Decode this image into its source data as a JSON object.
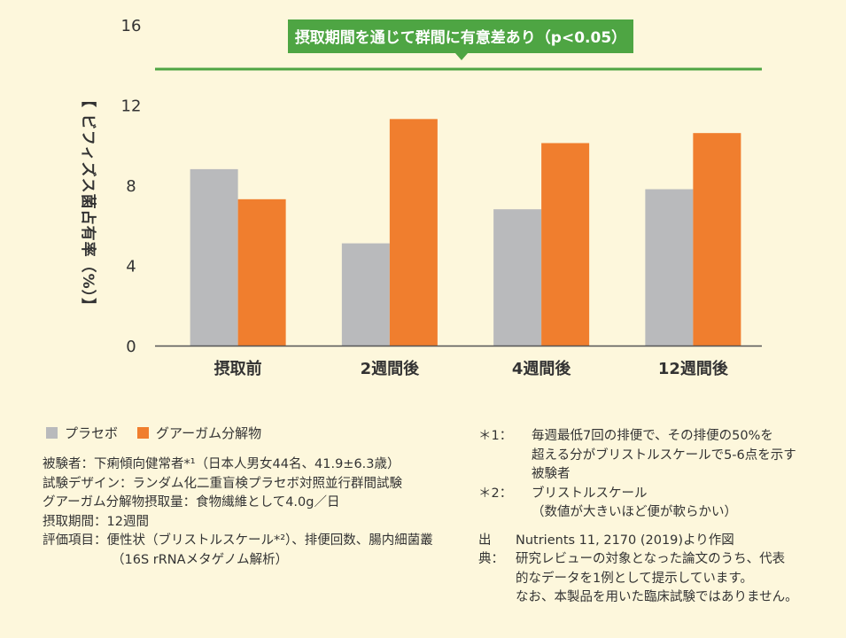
{
  "colors": {
    "placebo": "#b9babc",
    "pectin": "#f07e2e",
    "green": "#4ea543",
    "axis": "#555555",
    "background": "#fdf7dc"
  },
  "chart_data": {
    "type": "bar",
    "ylabel": "【 ビフィズス菌占有率（%）】",
    "ylim": [
      0,
      16
    ],
    "yticks": [
      "0",
      "4",
      "8",
      "12",
      "16"
    ],
    "categories": [
      "摂取前",
      "2週間後",
      "4週間後",
      "12週間後"
    ],
    "series": [
      {
        "name": "プラセボ",
        "values": [
          8.8,
          5.1,
          6.8,
          7.8
        ]
      },
      {
        "name": "グアーガム分解物",
        "values": [
          7.3,
          11.3,
          10.1,
          10.6
        ]
      }
    ],
    "annotation": "摂取期間を通じて群間に有意差あり（p<0.05）",
    "legend_position": "bottom-left"
  },
  "notes": {
    "subjects": "被験者：下痢傾向健常者*¹（日本人男女44名、41.9±6.3歳）",
    "design": "試験デザイン：ランダム化二重盲検プラセボ対照並行群間試験",
    "dose": "グアーガム分解物摂取量：食物繊維として4.0g／日",
    "period": "摂取期間：12週間",
    "items_1": "評価項目：便性状（ブリストルスケール*²）、排便回数、腸内細菌叢",
    "items_2": "（16S rRNAメタゲノム解析）"
  },
  "footnotes": {
    "fn1_mark": "＊1：",
    "fn1_line1": "毎週最低7回の排便で、その排便の50%を",
    "fn1_line2": "超える分がブリストルスケールで5-6点を示す",
    "fn1_line3": "被験者",
    "fn2_mark": "＊2：",
    "fn2_line1": "ブリストルスケール",
    "fn2_line2": "（数値が大きいほど便が軟らかい）",
    "source_mark": "出典：",
    "source_line1": "Nutrients 11, 2170 (2019)より作図",
    "source_line2": "研究レビューの対象となった論文のうち、代表",
    "source_line3": "的なデータを1例として提示しています。",
    "source_line4": "なお、本製品を用いた臨床試験ではありません。"
  }
}
